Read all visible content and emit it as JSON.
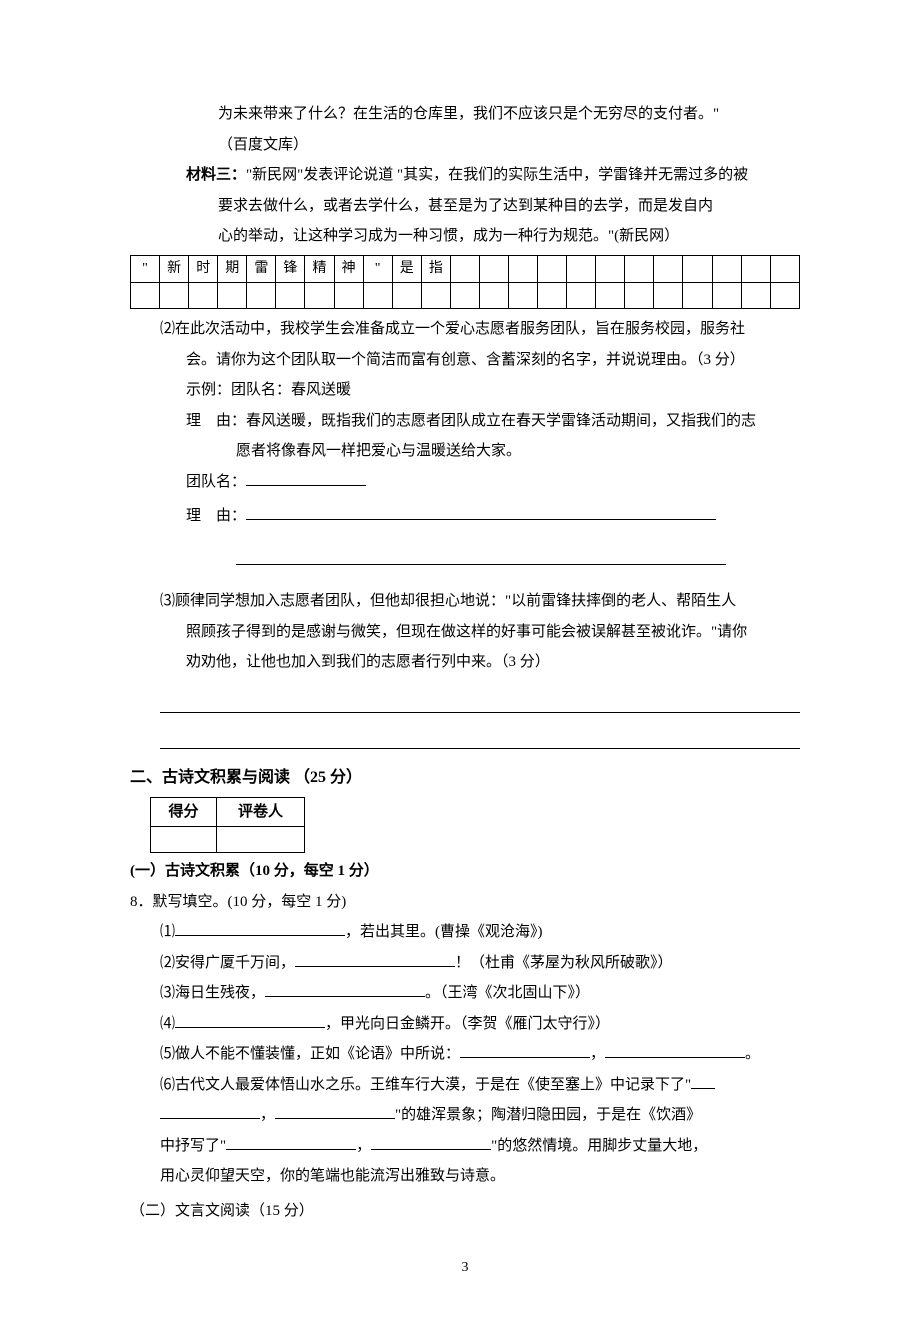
{
  "para1": {
    "l1": "为未来带来了什么？在生活的仓库里，我们不应该只是个无穷尽的支付者。\"",
    "l2": "（百度文库）"
  },
  "material3": {
    "label": "材料三：",
    "l1": "\"新民网\"发表评论说道 \"其实，在我们的实际生活中，学雷锋并无需过多的被",
    "l2": "要求去做什么，或者去学什么，甚至是为了达到某种目的去学，而是发自内",
    "l3": "心的举动，让这种学习成为一种习惯，成为一种行为规范。\"(新民网）"
  },
  "grid": {
    "cells": [
      "\"",
      "新",
      "时",
      "期",
      "雷",
      "锋",
      "精",
      "神",
      "\"",
      "是",
      "指",
      "",
      "",
      "",
      "",
      "",
      "",
      "",
      "",
      "",
      "",
      "",
      ""
    ],
    "cols": 23
  },
  "q2": {
    "l1": "⑵在此次活动中，我校学生会准备成立一个爱心志愿者服务团队，旨在服务校园，服务社",
    "l2": "会。请你为这个团队取一个简洁而富有创意、含蓄深刻的名字，并说说理由。（3 分）",
    "l3": "示例：团队名：春风送暖",
    "l4a": "理　由：",
    "l4b": "春风送暖，既指我们的志愿者团队成立在春天学雷锋活动期间，又指我们的志",
    "l5": "愿者将像春风一样把爱心与温暖送给大家。",
    "team_label": "团队名：",
    "reason_label": "理　由："
  },
  "q3": {
    "l1": "⑶顾律同学想加入志愿者团队，但他却很担心地说：\"以前雷锋扶摔倒的老人、帮陌生人",
    "l2": "照顾孩子得到的是感谢与微笑，但现在做这样的好事可能会被误解甚至被讹诈。\"请你",
    "l3": "劝劝他，让他也加入到我们的志愿者行列中来。（3 分）"
  },
  "section2": {
    "title": "二、古诗文积累与阅读 （25 分）",
    "score_h1": "得分",
    "score_h2": "评卷人",
    "sub1_title": "(一）古诗文积累（10 分，每空 1 分）",
    "q8": "8．默写填空。(10 分，每空 1 分)",
    "i1a": "⑴",
    "i1b": "，若出其里。(曹操《观沧海》)",
    "i2a": "⑵安得广厦千万间，",
    "i2b": "！（杜甫《茅屋为秋风所破歌》）",
    "i3a": "⑶海日生残夜，",
    "i3b": "。（王湾《次北固山下》）",
    "i4a": "⑷",
    "i4b": "，甲光向日金鳞开。（李贺《雁门太守行》）",
    "i5a": "⑸做人不能不懂装懂，正如《论语》中所说：",
    "i5b": "，",
    "i5c": "。",
    "i6a": "⑹古代文人最爱体悟山水之乐。王维车行大漠，于是在《使至塞上》中记录下了\"",
    "i6b": "，",
    "i6c": "\"的雄浑景象；陶潜归隐田园，于是在《饮酒》",
    "i6d": "中抒写了\"",
    "i6e": "，",
    "i6f": "\"的悠然情境。用脚步丈量大地，",
    "i6g": "用心灵仰望天空，你的笔端也能流泻出雅致与诗意。",
    "sub2_title": "（二）文言文阅读（15 分）"
  },
  "page_number": "3"
}
